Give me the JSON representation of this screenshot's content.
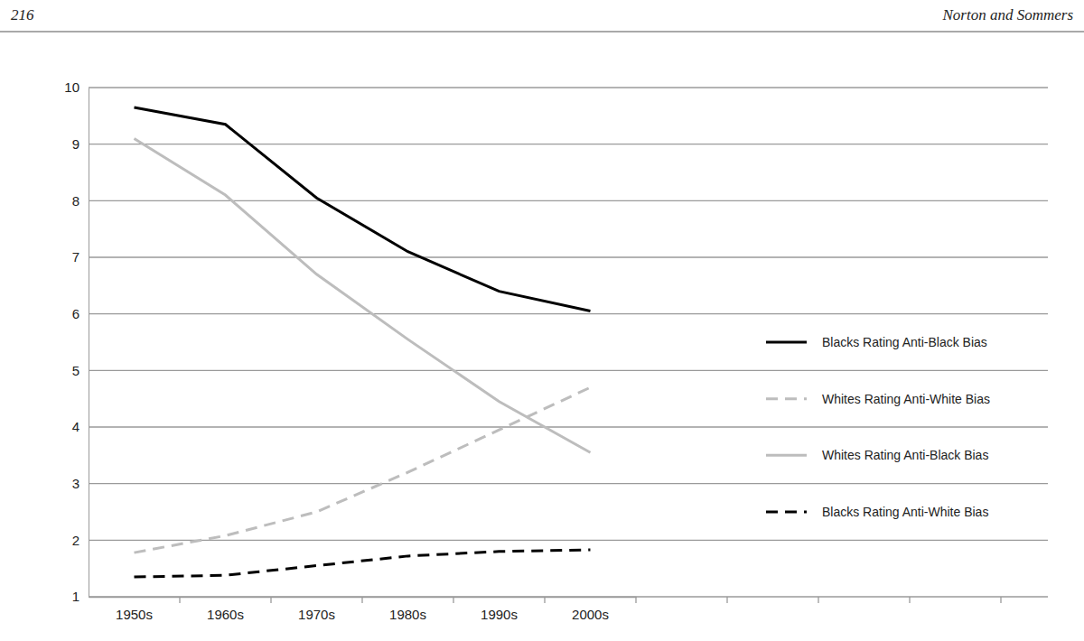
{
  "header": {
    "page_number": "216",
    "running_head": "Norton and Sommers"
  },
  "chart_data": {
    "type": "line",
    "categories": [
      "1950s",
      "1960s",
      "1970s",
      "1980s",
      "1990s",
      "2000s"
    ],
    "series": [
      {
        "name": "Blacks Rating Anti-Black Bias",
        "color": "#000000",
        "line_style": "solid",
        "values": [
          9.65,
          9.35,
          8.05,
          7.1,
          6.4,
          6.05
        ]
      },
      {
        "name": "Whites Rating Anti-White Bias",
        "color": "#bdbdbd",
        "line_style": "dashed",
        "values": [
          1.78,
          2.08,
          2.5,
          3.2,
          3.95,
          4.7
        ]
      },
      {
        "name": "Whites Rating Anti-Black Bias",
        "color": "#bdbdbd",
        "line_style": "solid",
        "values": [
          9.1,
          8.1,
          6.7,
          5.55,
          4.45,
          3.55
        ]
      },
      {
        "name": "Blacks Rating Anti-White Bias",
        "color": "#000000",
        "line_style": "dashed",
        "values": [
          1.35,
          1.38,
          1.55,
          1.72,
          1.8,
          1.83
        ]
      }
    ],
    "ylim": [
      1,
      10
    ],
    "yticks": [
      1,
      2,
      3,
      4,
      5,
      6,
      7,
      8,
      9,
      10
    ],
    "grid": true,
    "legend": "right"
  }
}
